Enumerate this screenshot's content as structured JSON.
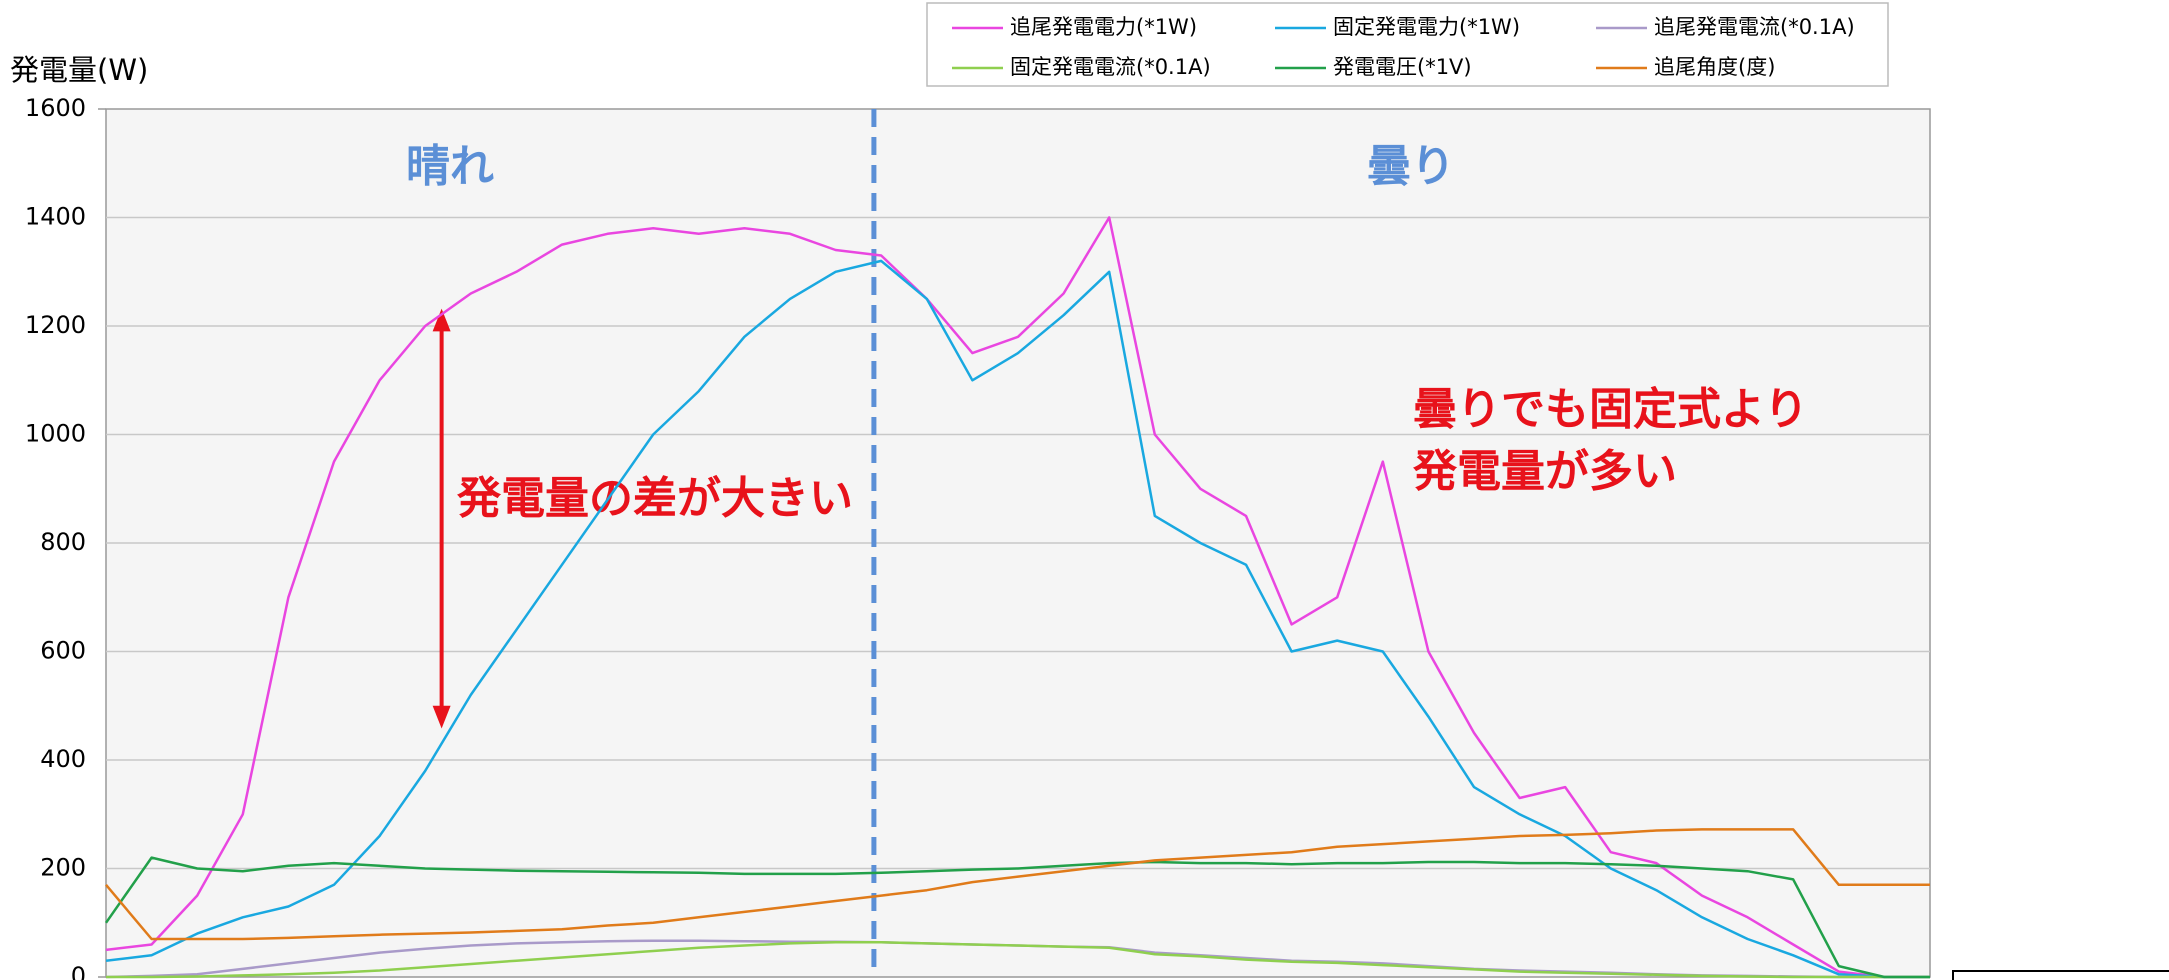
{
  "chart_data": {
    "type": "line",
    "y_label": "発電量(W)",
    "ylim": [
      0,
      1600
    ],
    "yticks": [
      0,
      200,
      400,
      600,
      800,
      1000,
      1200,
      1400,
      1600
    ],
    "grid": true,
    "legend": "top",
    "annotations": [
      "晴れ",
      "曇り",
      "発電量の差が大きい",
      "曇りでも固定式より",
      "発電量が多い"
    ],
    "series": [
      {
        "name": "追尾発電電力(*1W)",
        "color": "#e946e0",
        "values": [
          50,
          60,
          150,
          300,
          700,
          950,
          1100,
          1200,
          1260,
          1300,
          1350,
          1370,
          1380,
          1370,
          1380,
          1370,
          1340,
          1330,
          1250,
          1150,
          1180,
          1260,
          1400,
          1000,
          900,
          850,
          650,
          700,
          950,
          600,
          450,
          330,
          350,
          230,
          210,
          150,
          110,
          60,
          10,
          0,
          0
        ]
      },
      {
        "name": "固定発電電力(*1W)",
        "color": "#19a8e0",
        "values": [
          30,
          40,
          80,
          110,
          130,
          170,
          260,
          380,
          520,
          640,
          760,
          880,
          1000,
          1080,
          1180,
          1250,
          1300,
          1320,
          1250,
          1100,
          1150,
          1220,
          1300,
          850,
          800,
          760,
          600,
          620,
          600,
          480,
          350,
          300,
          260,
          200,
          160,
          110,
          70,
          40,
          5,
          0,
          0
        ]
      },
      {
        "name": "追尾発電電流(*0.1A)",
        "color": "#a99ac9",
        "values": [
          0,
          2,
          5,
          15,
          25,
          35,
          45,
          52,
          58,
          62,
          64,
          66,
          67,
          67,
          66,
          65,
          65,
          64,
          62,
          60,
          58,
          56,
          55,
          45,
          40,
          35,
          30,
          28,
          25,
          20,
          15,
          12,
          10,
          8,
          5,
          3,
          2,
          1,
          0,
          0,
          0
        ]
      },
      {
        "name": "固定発電電流(*0.1A)",
        "color": "#8fcf4f",
        "values": [
          0,
          0,
          1,
          3,
          5,
          8,
          12,
          18,
          24,
          30,
          36,
          42,
          48,
          54,
          58,
          62,
          64,
          64,
          62,
          60,
          58,
          56,
          54,
          42,
          38,
          32,
          28,
          26,
          22,
          18,
          14,
          10,
          8,
          6,
          4,
          2,
          1,
          0,
          0,
          0,
          0
        ]
      },
      {
        "name": "発電電圧(*1V)",
        "color": "#22a04a",
        "values": [
          100,
          220,
          200,
          195,
          205,
          210,
          205,
          200,
          198,
          196,
          195,
          194,
          193,
          192,
          190,
          190,
          190,
          192,
          195,
          198,
          200,
          205,
          210,
          212,
          210,
          210,
          208,
          210,
          210,
          212,
          212,
          210,
          210,
          208,
          205,
          200,
          195,
          180,
          20,
          0,
          0
        ]
      },
      {
        "name": "追尾角度(度)",
        "color": "#e07b1a",
        "values": [
          170,
          70,
          70,
          70,
          72,
          75,
          78,
          80,
          82,
          85,
          88,
          95,
          100,
          110,
          120,
          130,
          140,
          150,
          160,
          175,
          185,
          195,
          205,
          215,
          220,
          225,
          230,
          240,
          245,
          250,
          255,
          260,
          262,
          265,
          270,
          272,
          272,
          272,
          170,
          170,
          170
        ]
      }
    ]
  }
}
